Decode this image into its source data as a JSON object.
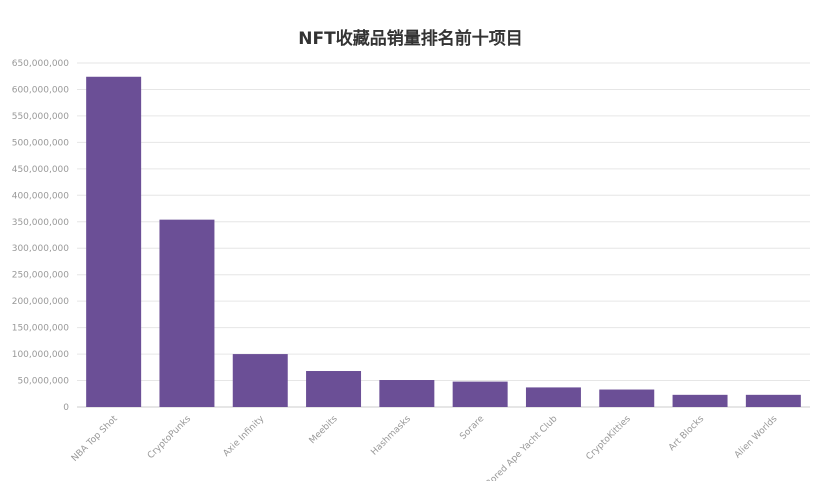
{
  "chart_data": {
    "type": "bar",
    "title": "NFT收藏品销量排名前十项目",
    "xlabel": "",
    "ylabel": "",
    "categories": [
      "NBA Top Shot",
      "CryptoPunks",
      "Axie Infinity",
      "Meebits",
      "Hashmasks",
      "Sorare",
      "Bored Ape Yacht Club",
      "CryptoKitties",
      "Art Blocks",
      "Alien Worlds"
    ],
    "values": [
      624000000,
      354000000,
      100000000,
      68000000,
      51000000,
      48000000,
      37000000,
      33000000,
      23000000,
      23000000
    ],
    "ylim": [
      0,
      650000000
    ],
    "yticks": [
      "0",
      "50,000,000",
      "100,000,000",
      "150,000,000",
      "200,000,000",
      "250,000,000",
      "300,000,000",
      "350,000,000",
      "400,000,000",
      "450,000,000",
      "500,000,000",
      "550,000,000",
      "600,000,000",
      "650,000,000"
    ],
    "grid": true,
    "bar_color": "#6b4f96"
  }
}
